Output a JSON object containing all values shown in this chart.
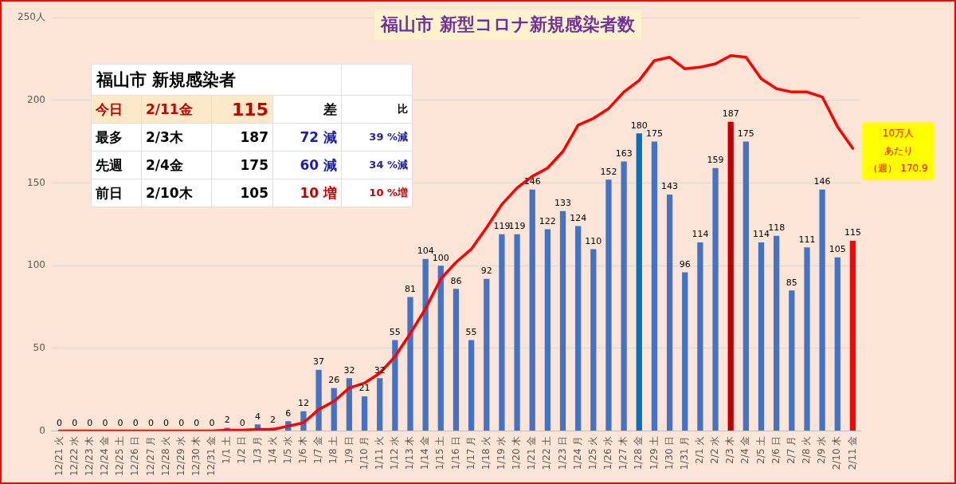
{
  "chart_data": [
    {
      "type": "bar",
      "title": "福山市 新型コロナ新規感染者数",
      "categories": [
        "12/21 火",
        "12/22 水",
        "12/23 木",
        "12/24 金",
        "12/25 土",
        "12/26 日",
        "12/27 月",
        "12/28 火",
        "12/29 水",
        "12/30 木",
        "12/31 金",
        "1/1 土",
        "1/2 日",
        "1/3 月",
        "1/4 火",
        "1/5 水",
        "1/6 木",
        "1/7 金",
        "1/8 土",
        "1/9 日",
        "1/10 月",
        "1/11 火",
        "1/12 水",
        "1/13 木",
        "1/14 金",
        "1/15 土",
        "1/16 日",
        "1/17 月",
        "1/18 火",
        "1/19 水",
        "1/20 木",
        "1/21 金",
        "1/22 土",
        "1/23 日",
        "1/24 月",
        "1/25 火",
        "1/26 水",
        "1/27 木",
        "1/28 金",
        "1/29 土",
        "1/30 日",
        "1/31 月",
        "2/1 火",
        "2/2 水",
        "2/3 木",
        "2/4 金",
        "2/5 土",
        "2/6 日",
        "2/7 月",
        "2/8 火",
        "2/9 水",
        "2/10 木",
        "2/11 金"
      ],
      "series": [
        {
          "type": "bar",
          "values": [
            0,
            0,
            0,
            0,
            0,
            0,
            0,
            0,
            0,
            0,
            0,
            2,
            0,
            4,
            2,
            6,
            12,
            37,
            26,
            32,
            21,
            32,
            55,
            81,
            104,
            100,
            86,
            55,
            92,
            119,
            119,
            146,
            122,
            133,
            124,
            110,
            152,
            163,
            180,
            175,
            143,
            96,
            114,
            159,
            187,
            175,
            114,
            118,
            85,
            111,
            146,
            105,
            115
          ],
          "colors": [
            "#4472c4",
            "#4472c4",
            "#4472c4",
            "#4472c4",
            "#4472c4",
            "#4472c4",
            "#4472c4",
            "#4472c4",
            "#4472c4",
            "#4472c4",
            "#4472c4",
            "#4472c4",
            "#4472c4",
            "#4472c4",
            "#4472c4",
            "#4472c4",
            "#4472c4",
            "#4472c4",
            "#4472c4",
            "#4472c4",
            "#4472c4",
            "#4472c4",
            "#4472c4",
            "#4472c4",
            "#4472c4",
            "#4472c4",
            "#4472c4",
            "#4472c4",
            "#4472c4",
            "#4472c4",
            "#4472c4",
            "#4472c4",
            "#4472c4",
            "#4472c4",
            "#4472c4",
            "#4472c4",
            "#4472c4",
            "#4472c4",
            "#0070c0",
            "#4472c4",
            "#4472c4",
            "#4472c4",
            "#4472c4",
            "#4472c4",
            "#c00000",
            "#4472c4",
            "#4472c4",
            "#4472c4",
            "#4472c4",
            "#4472c4",
            "#4472c4",
            "#4472c4",
            "#ff0000"
          ],
          "value_labels": [
            "0",
            "0",
            "0",
            "0",
            "0",
            "0",
            "0",
            "0",
            "0",
            "0",
            "0",
            "2",
            "0",
            "4",
            "2",
            "6",
            "12",
            "37",
            "26",
            "32",
            "21",
            "32",
            "55",
            "81",
            "104",
            "100",
            "86",
            "55",
            "92",
            "119",
            "119",
            "146",
            "122",
            "133",
            "124",
            "110",
            "152",
            "163",
            "180",
            "175",
            "143",
            "96",
            "114",
            "159",
            "187",
            "175",
            "114",
            "118",
            "85",
            "111",
            "146",
            "105",
            "115"
          ]
        },
        {
          "type": "line",
          "color": "#ff0000",
          "values": [
            0,
            0,
            0,
            0,
            0,
            0,
            0,
            0,
            0,
            0,
            0,
            0.5,
            0.5,
            1,
            1,
            3,
            5,
            13,
            18,
            26,
            29,
            35,
            45,
            59,
            74,
            92,
            102,
            110,
            123,
            137,
            147,
            154,
            159,
            169,
            185,
            189,
            195,
            205,
            212,
            224,
            226,
            219,
            220,
            222,
            227,
            226,
            213,
            207,
            205,
            205,
            202,
            184,
            170.9
          ]
        }
      ],
      "ylim": [
        0,
        250
      ],
      "yticks": [
        0,
        50,
        100,
        150,
        200,
        {
          "value": 250,
          "label": "250人"
        }
      ],
      "grid": "y",
      "legend": false,
      "marker": "none",
      "line_style": "solid",
      "annotations": [
        {
          "text": "10万人あたり（週） 170.9",
          "x": "2/11 金",
          "y": 170.9
        }
      ]
    },
    {
      "type": "other",
      "title": "福山市 新規感染者",
      "annotations": [
        "今日",
        "2/11金",
        "115",
        "差",
        "比",
        "最多",
        "2/3木",
        "187",
        "72 減",
        "39 %減",
        "先週",
        "2/4金",
        "175",
        "60 減",
        "34 %減",
        "前日",
        "2/10木",
        "105",
        "10 増",
        "10 %増"
      ]
    }
  ]
}
